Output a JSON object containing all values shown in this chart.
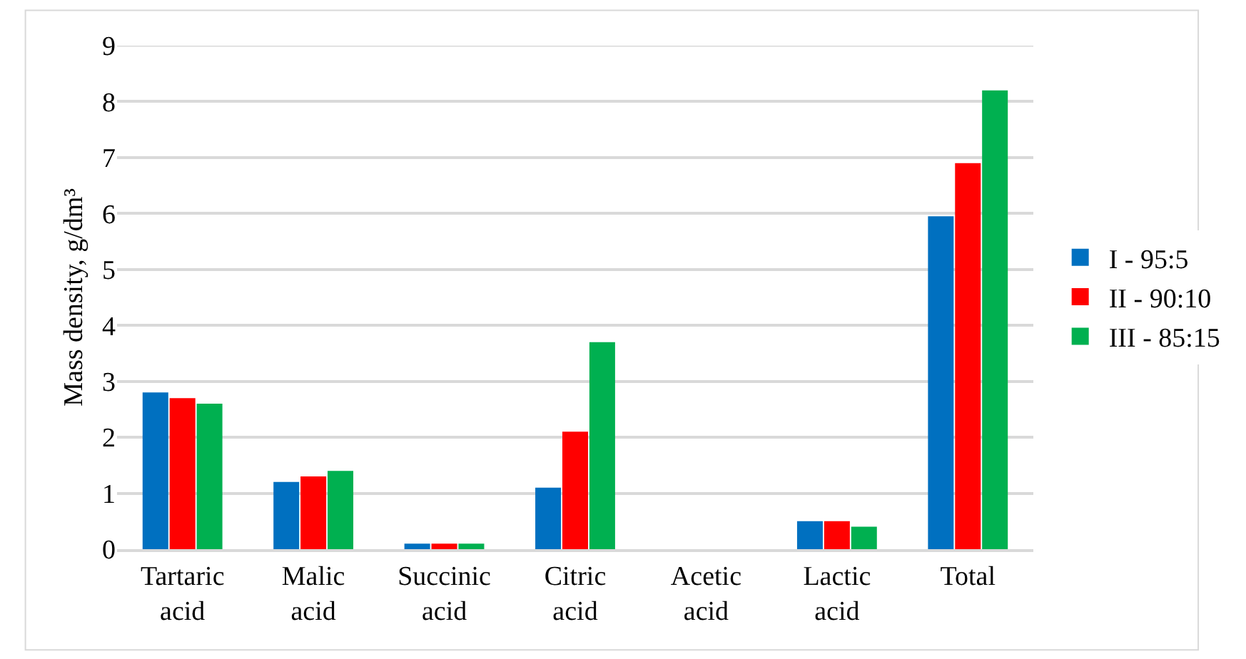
{
  "chart_data": {
    "type": "bar",
    "ylabel": "Mass density, g/dm³",
    "categories": [
      "Tartaric acid",
      "Malic acid",
      "Succinic acid",
      "Citric acid",
      "Acetic acid",
      "Lactic acid",
      "Total"
    ],
    "series": [
      {
        "name": "I - 95:5",
        "color": "#0070c0",
        "values": [
          2.8,
          1.2,
          0.1,
          1.1,
          null,
          0.5,
          5.95
        ]
      },
      {
        "name": "II - 90:10",
        "color": "#ff0000",
        "values": [
          2.7,
          1.3,
          0.1,
          2.1,
          null,
          0.5,
          6.9
        ]
      },
      {
        "name": "III - 85:15",
        "color": "#00b050",
        "values": [
          2.6,
          1.4,
          0.1,
          3.7,
          null,
          0.4,
          8.2
        ]
      }
    ],
    "ylim": [
      0,
      9
    ],
    "yticks": [
      0,
      1,
      2,
      3,
      4,
      5,
      6,
      7,
      8,
      9
    ],
    "grid": "y",
    "legend": "right"
  }
}
